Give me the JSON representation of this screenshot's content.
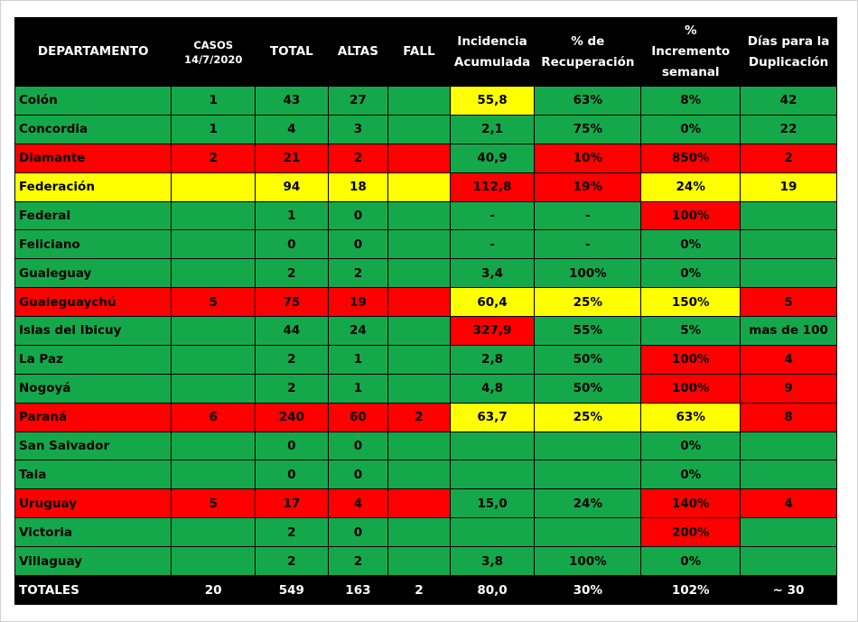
{
  "colors": {
    "green": "#15a84b",
    "red": "#ff0000",
    "yellow": "#ffff00",
    "header": "#000000"
  },
  "headers": [
    [
      "DEPARTAMENTO"
    ],
    [
      "CASOS",
      "14/7/2020"
    ],
    [
      "TOTAL"
    ],
    [
      "ALTAS"
    ],
    [
      "FALL"
    ],
    [
      "Incidencia",
      "Acumulada"
    ],
    [
      "% de",
      "Recuperación"
    ],
    [
      "%",
      "Incremento",
      "semanal"
    ],
    [
      "Días para la",
      "Duplicación"
    ]
  ],
  "rows": [
    {
      "cells": [
        "Colón",
        "1",
        "43",
        "27",
        "",
        "55,8",
        "63%",
        "8%",
        "42"
      ],
      "colors": [
        "g",
        "g",
        "g",
        "g",
        "g",
        "y",
        "g",
        "g",
        "g"
      ]
    },
    {
      "cells": [
        "Concordia",
        "1",
        "4",
        "3",
        "",
        "2,1",
        "75%",
        "0%",
        "22"
      ],
      "colors": [
        "g",
        "g",
        "g",
        "g",
        "g",
        "g",
        "g",
        "g",
        "g"
      ]
    },
    {
      "cells": [
        "Diamante",
        "2",
        "21",
        "2",
        "",
        "40,9",
        "10%",
        "850%",
        "2"
      ],
      "colors": [
        "r",
        "r",
        "r",
        "r",
        "r",
        "g",
        "r",
        "r",
        "r"
      ]
    },
    {
      "cells": [
        "Federación",
        "",
        "94",
        "18",
        "",
        "112,8",
        "19%",
        "24%",
        "19"
      ],
      "colors": [
        "y",
        "y",
        "y",
        "y",
        "y",
        "r",
        "r",
        "y",
        "y"
      ]
    },
    {
      "cells": [
        "Federal",
        "",
        "1",
        "0",
        "",
        "-",
        "-",
        "100%",
        ""
      ],
      "colors": [
        "g",
        "g",
        "g",
        "g",
        "g",
        "g",
        "g",
        "r",
        "g"
      ]
    },
    {
      "cells": [
        "Feliciano",
        "",
        "0",
        "0",
        "",
        "-",
        "-",
        "0%",
        ""
      ],
      "colors": [
        "g",
        "g",
        "g",
        "g",
        "g",
        "g",
        "g",
        "g",
        "g"
      ]
    },
    {
      "cells": [
        "Gualeguay",
        "",
        "2",
        "2",
        "",
        "3,4",
        "100%",
        "0%",
        ""
      ],
      "colors": [
        "g",
        "g",
        "g",
        "g",
        "g",
        "g",
        "g",
        "g",
        "g"
      ]
    },
    {
      "cells": [
        "Gualeguaychú",
        "5",
        "75",
        "19",
        "",
        "60,4",
        "25%",
        "150%",
        "5"
      ],
      "colors": [
        "r",
        "r",
        "r",
        "r",
        "r",
        "y",
        "y",
        "y",
        "r"
      ]
    },
    {
      "cells": [
        "Islas del Ibicuy",
        "",
        "44",
        "24",
        "",
        "327,9",
        "55%",
        "5%",
        "mas de 100"
      ],
      "colors": [
        "g",
        "g",
        "g",
        "g",
        "g",
        "r",
        "g",
        "g",
        "g"
      ]
    },
    {
      "cells": [
        "La Paz",
        "",
        "2",
        "1",
        "",
        "2,8",
        "50%",
        "100%",
        "4"
      ],
      "colors": [
        "g",
        "g",
        "g",
        "g",
        "g",
        "g",
        "g",
        "r",
        "r"
      ]
    },
    {
      "cells": [
        "Nogoyá",
        "",
        "2",
        "1",
        "",
        "4,8",
        "50%",
        "100%",
        "9"
      ],
      "colors": [
        "g",
        "g",
        "g",
        "g",
        "g",
        "g",
        "g",
        "r",
        "r"
      ]
    },
    {
      "cells": [
        "Paraná",
        "6",
        "240",
        "60",
        "2",
        "63,7",
        "25%",
        "63%",
        "8"
      ],
      "colors": [
        "r",
        "r",
        "r",
        "r",
        "r",
        "y",
        "y",
        "y",
        "r"
      ]
    },
    {
      "cells": [
        "San Salvador",
        "",
        "0",
        "0",
        "",
        "",
        "",
        "0%",
        ""
      ],
      "colors": [
        "g",
        "g",
        "g",
        "g",
        "g",
        "g",
        "g",
        "g",
        "g"
      ]
    },
    {
      "cells": [
        "Tala",
        "",
        "0",
        "0",
        "",
        "",
        "",
        "0%",
        ""
      ],
      "colors": [
        "g",
        "g",
        "g",
        "g",
        "g",
        "g",
        "g",
        "g",
        "g"
      ]
    },
    {
      "cells": [
        "Uruguay",
        "5",
        "17",
        "4",
        "",
        "15,0",
        "24%",
        "140%",
        "4"
      ],
      "colors": [
        "r",
        "r",
        "r",
        "r",
        "r",
        "g",
        "g",
        "r",
        "r"
      ]
    },
    {
      "cells": [
        "Victoria",
        "",
        "2",
        "0",
        "",
        "",
        "",
        "200%",
        ""
      ],
      "colors": [
        "g",
        "g",
        "g",
        "g",
        "g",
        "g",
        "g",
        "r",
        "g"
      ]
    },
    {
      "cells": [
        "Villaguay",
        "",
        "2",
        "2",
        "",
        "3,8",
        "100%",
        "0%",
        ""
      ],
      "colors": [
        "g",
        "g",
        "g",
        "g",
        "g",
        "g",
        "g",
        "g",
        "g"
      ]
    }
  ],
  "totals": [
    "TOTALES",
    "20",
    "549",
    "163",
    "2",
    "80,0",
    "30%",
    "102%",
    "~ 30"
  ]
}
